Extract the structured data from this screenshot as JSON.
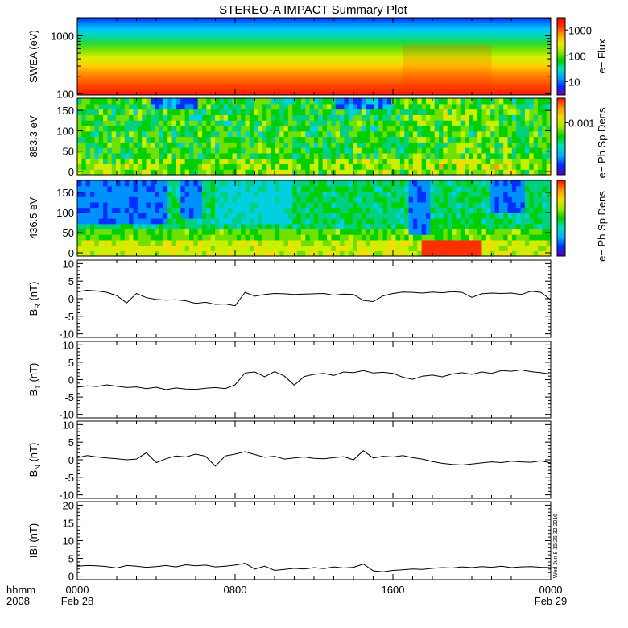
{
  "title": "STEREO-A IMPACT Summary Plot",
  "time_axis": {
    "row_label_1": "hhmm",
    "row_label_2": "2008",
    "ticks": [
      {
        "hour": 0,
        "time": "0000",
        "date": "Feb 28"
      },
      {
        "hour": 8,
        "time": "0800",
        "date": ""
      },
      {
        "hour": 16,
        "time": "1600",
        "date": ""
      },
      {
        "hour": 24,
        "time": "0000",
        "date": "Feb 29"
      }
    ],
    "range_hours": [
      0,
      24
    ]
  },
  "timestamp": "Wed Jun  8 15:25:32 2016",
  "chart_data": [
    {
      "id": "swea",
      "type": "heatmap",
      "ylabel": "SWEA (eV)",
      "yscale": "log",
      "yticks": [
        {
          "v": 100,
          "label": "100"
        },
        {
          "v": 1000,
          "label": "1000"
        }
      ],
      "ylim": [
        95,
        2050
      ],
      "colorbar": {
        "label": "e− Flux",
        "scale": "log",
        "ticks": [
          {
            "v": 10,
            "label": "10"
          },
          {
            "v": 100,
            "label": "100"
          },
          {
            "v": 1000,
            "label": "1000"
          }
        ],
        "range": [
          3,
          3000
        ]
      },
      "colors": [
        "#ff0000",
        "#ff6000",
        "#ffb000",
        "#ffe600",
        "#c8f000",
        "#5ae000",
        "#00d880",
        "#00ccff",
        "#0090ff",
        "#0033ff"
      ],
      "band_boundaries_ev": [
        {
          "ev": 95,
          "color": "#ff1a00"
        },
        {
          "ev": 150,
          "color": "#ff5000"
        },
        {
          "ev": 230,
          "color": "#ff9500"
        },
        {
          "ev": 300,
          "color": "#ffd000"
        },
        {
          "ev": 420,
          "color": "#d8ee00"
        },
        {
          "ev": 560,
          "color": "#80e400"
        },
        {
          "ev": 760,
          "color": "#20d840"
        },
        {
          "ev": 1000,
          "color": "#00d8b0"
        },
        {
          "ev": 1300,
          "color": "#00c8ff"
        },
        {
          "ev": 1600,
          "color": "#008cff"
        },
        {
          "ev": 2050,
          "color": "#0030ff"
        }
      ]
    },
    {
      "id": "pad_883",
      "type": "heatmap",
      "ylabel": "883.3 eV",
      "yticks": [
        0,
        50,
        100,
        150
      ],
      "ylim": [
        -8,
        180
      ],
      "colorbar": {
        "label": "e− Ph Sp Dens",
        "ticks": [
          {
            "v": 0.001,
            "label": "0.001"
          }
        ]
      },
      "dominant_colors": [
        "#00d000",
        "#7ee000",
        "#00e0a0",
        "#f0e000",
        "#ff7000",
        "#ff0000",
        "#0070ff"
      ]
    },
    {
      "id": "pad_436",
      "type": "heatmap",
      "ylabel": "436.5 eV",
      "yticks": [
        0,
        50,
        100,
        150
      ],
      "ylim": [
        -8,
        180
      ],
      "colorbar": {
        "label": "e− Ph Sp Dens"
      },
      "dominant_colors": [
        "#0040ff",
        "#00c0ff",
        "#00d000",
        "#d0f000",
        "#ff9000",
        "#ff0000"
      ]
    },
    {
      "id": "br",
      "type": "line",
      "ylabel": "B",
      "ylabel_sub": "R",
      "ylabel_unit": "(nT)",
      "yticks": [
        -10,
        -5,
        0,
        5,
        10
      ],
      "ylim": [
        -11,
        11
      ],
      "x_hours": [
        0,
        0.5,
        1,
        1.5,
        2,
        2.5,
        3,
        3.5,
        4,
        4.5,
        5,
        5.5,
        6,
        6.5,
        7,
        7.5,
        8,
        8.5,
        9,
        9.5,
        10,
        10.5,
        11,
        11.5,
        12,
        12.5,
        13,
        13.5,
        14,
        14.5,
        15,
        15.5,
        16,
        16.5,
        17,
        17.5,
        18,
        18.5,
        19,
        19.5,
        20,
        20.5,
        21,
        21.5,
        22,
        22.5,
        23,
        23.5,
        24
      ],
      "y": [
        2,
        2.4,
        2.2,
        1.8,
        0.9,
        -1.2,
        1.5,
        0.3,
        -0.2,
        -0.4,
        -0.3,
        -0.6,
        -1.3,
        -1.0,
        -1.6,
        -1.5,
        -2.0,
        1.8,
        0.7,
        1.2,
        1.5,
        1.4,
        1.2,
        1.3,
        1.4,
        1.5,
        1.0,
        1.3,
        1.2,
        -0.5,
        -0.8,
        0.8,
        1.5,
        1.9,
        1.8,
        1.6,
        1.9,
        1.7,
        2.0,
        1.8,
        0.4,
        1.4,
        1.6,
        1.5,
        1.6,
        1.2,
        2.1,
        1.8,
        -0.3
      ]
    },
    {
      "id": "bt",
      "type": "line",
      "ylabel": "B",
      "ylabel_sub": "T",
      "ylabel_unit": "(nT)",
      "yticks": [
        -10,
        -5,
        0,
        5,
        10
      ],
      "ylim": [
        -11,
        11
      ],
      "x_hours": [
        0,
        0.5,
        1,
        1.5,
        2,
        2.5,
        3,
        3.5,
        4,
        4.5,
        5,
        5.5,
        6,
        6.5,
        7,
        7.5,
        8,
        8.5,
        9,
        9.5,
        10,
        10.5,
        11,
        11.5,
        12,
        12.5,
        13,
        13.5,
        14,
        14.5,
        15,
        15.5,
        16,
        16.5,
        17,
        17.5,
        18,
        18.5,
        19,
        19.5,
        20,
        20.5,
        21,
        21.5,
        22,
        22.5,
        23,
        23.5,
        24
      ],
      "y": [
        -2.2,
        -1.8,
        -2.0,
        -1.5,
        -1.9,
        -2.3,
        -2.1,
        -2.6,
        -2.2,
        -2.9,
        -2.4,
        -2.7,
        -2.8,
        -2.5,
        -2.3,
        -2.6,
        -1.5,
        1.9,
        2.2,
        0.8,
        2.3,
        1.0,
        -1.6,
        0.9,
        1.5,
        1.8,
        1.2,
        2.2,
        2.0,
        2.6,
        1.9,
        2.1,
        1.8,
        0.7,
        0.1,
        1.0,
        1.3,
        0.8,
        1.6,
        2.0,
        1.5,
        2.2,
        1.8,
        2.6,
        2.4,
        2.8,
        2.3,
        2.0,
        1.6
      ]
    },
    {
      "id": "bn",
      "type": "line",
      "ylabel": "B",
      "ylabel_sub": "N",
      "ylabel_unit": "(nT)",
      "yticks": [
        -10,
        -5,
        0,
        5,
        10
      ],
      "ylim": [
        -11,
        11
      ],
      "x_hours": [
        0,
        0.5,
        1,
        1.5,
        2,
        2.5,
        3,
        3.5,
        4,
        4.5,
        5,
        5.5,
        6,
        6.5,
        7,
        7.5,
        8,
        8.5,
        9,
        9.5,
        10,
        10.5,
        11,
        11.5,
        12,
        12.5,
        13,
        13.5,
        14,
        14.5,
        15,
        15.5,
        16,
        16.5,
        17,
        17.5,
        18,
        18.5,
        19,
        19.5,
        20,
        20.5,
        21,
        21.5,
        22,
        22.5,
        23,
        23.5,
        24
      ],
      "y": [
        0.6,
        1.2,
        0.8,
        0.5,
        0.3,
        0.0,
        0.2,
        2.0,
        -0.8,
        0.3,
        1.1,
        0.8,
        1.6,
        1.0,
        -1.8,
        1.1,
        1.6,
        2.3,
        1.5,
        0.7,
        1.0,
        0.2,
        0.5,
        0.8,
        0.4,
        0.3,
        0.6,
        0.9,
        0.0,
        2.6,
        0.5,
        1.0,
        0.8,
        1.2,
        0.6,
        0.2,
        -0.5,
        -1.0,
        -1.3,
        -1.5,
        -1.2,
        -0.9,
        -0.6,
        -0.8,
        -0.4,
        -0.6,
        -0.7,
        -0.3,
        -0.9
      ]
    },
    {
      "id": "bmag",
      "type": "line",
      "ylabel": "IBI (nT)",
      "yticks": [
        0,
        5,
        10,
        15,
        20
      ],
      "ylim": [
        -1,
        21
      ],
      "x_hours": [
        0,
        0.5,
        1,
        1.5,
        2,
        2.5,
        3,
        3.5,
        4,
        4.5,
        5,
        5.5,
        6,
        6.5,
        7,
        7.5,
        8,
        8.5,
        9,
        9.5,
        10,
        10.5,
        11,
        11.5,
        12,
        12.5,
        13,
        13.5,
        14,
        14.5,
        15,
        15.5,
        16,
        16.5,
        17,
        17.5,
        18,
        18.5,
        19,
        19.5,
        20,
        20.5,
        21,
        21.5,
        22,
        22.5,
        23,
        23.5,
        24
      ],
      "y": [
        2.8,
        3.0,
        2.9,
        2.7,
        2.3,
        3.0,
        2.8,
        2.5,
        2.7,
        3.0,
        2.6,
        3.2,
        2.9,
        3.1,
        2.6,
        2.8,
        3.1,
        3.6,
        2.0,
        2.8,
        1.6,
        1.9,
        2.2,
        2.0,
        2.4,
        2.1,
        2.6,
        2.3,
        2.5,
        3.4,
        1.5,
        1.2,
        1.6,
        1.8,
        2.0,
        1.9,
        2.2,
        2.4,
        2.3,
        2.6,
        2.4,
        2.7,
        2.5,
        2.8,
        2.4,
        2.6,
        2.7,
        2.5,
        2.4
      ]
    }
  ]
}
